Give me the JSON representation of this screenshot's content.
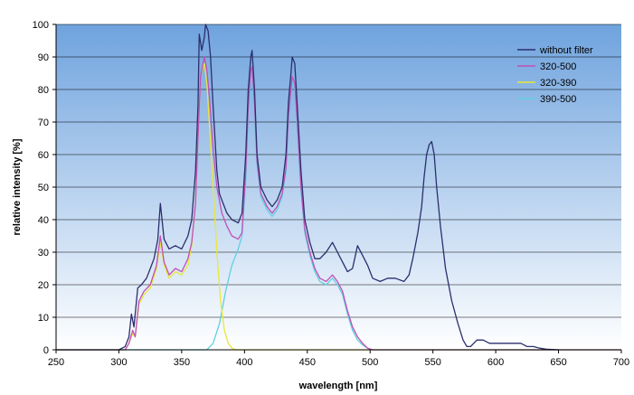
{
  "chart_data": {
    "type": "line",
    "xlabel": "wavelength [nm]",
    "ylabel": "relative intensity [%]",
    "xlim": [
      250,
      700
    ],
    "ylim": [
      0,
      100
    ],
    "x_ticks": [
      "250",
      "300",
      "350",
      "400",
      "450",
      "500",
      "550",
      "600",
      "650",
      "700"
    ],
    "y_ticks": [
      "0",
      "10",
      "20",
      "30",
      "40",
      "50",
      "60",
      "70",
      "80",
      "90",
      "100"
    ],
    "grid": "horizontal",
    "legend_position": "top-right",
    "series": [
      {
        "name": "without filter",
        "color": "#2b2f6e",
        "points": [
          [
            250,
            0
          ],
          [
            300,
            0
          ],
          [
            305,
            1
          ],
          [
            308,
            4
          ],
          [
            310,
            11
          ],
          [
            312,
            7
          ],
          [
            315,
            19
          ],
          [
            318,
            20
          ],
          [
            322,
            22
          ],
          [
            325,
            25
          ],
          [
            328,
            28
          ],
          [
            331,
            34
          ],
          [
            333,
            45
          ],
          [
            336,
            34
          ],
          [
            340,
            31
          ],
          [
            345,
            32
          ],
          [
            350,
            31
          ],
          [
            355,
            35
          ],
          [
            358,
            40
          ],
          [
            361,
            55
          ],
          [
            363,
            75
          ],
          [
            364,
            97
          ],
          [
            366,
            92
          ],
          [
            368,
            96
          ],
          [
            369,
            100
          ],
          [
            371,
            98
          ],
          [
            373,
            90
          ],
          [
            375,
            75
          ],
          [
            378,
            55
          ],
          [
            380,
            48
          ],
          [
            383,
            45
          ],
          [
            386,
            42
          ],
          [
            390,
            40
          ],
          [
            395,
            39
          ],
          [
            398,
            42
          ],
          [
            401,
            60
          ],
          [
            403,
            80
          ],
          [
            405,
            90
          ],
          [
            406,
            92
          ],
          [
            408,
            80
          ],
          [
            410,
            60
          ],
          [
            413,
            50
          ],
          [
            418,
            46
          ],
          [
            422,
            44
          ],
          [
            426,
            46
          ],
          [
            430,
            50
          ],
          [
            433,
            60
          ],
          [
            435,
            76
          ],
          [
            437,
            85
          ],
          [
            438,
            90
          ],
          [
            440,
            88
          ],
          [
            442,
            75
          ],
          [
            445,
            55
          ],
          [
            448,
            40
          ],
          [
            452,
            33
          ],
          [
            456,
            28
          ],
          [
            460,
            28
          ],
          [
            465,
            30
          ],
          [
            470,
            33
          ],
          [
            474,
            30
          ],
          [
            478,
            27
          ],
          [
            482,
            24
          ],
          [
            486,
            25
          ],
          [
            490,
            32
          ],
          [
            494,
            29
          ],
          [
            498,
            26
          ],
          [
            502,
            22
          ],
          [
            508,
            21
          ],
          [
            514,
            22
          ],
          [
            520,
            22
          ],
          [
            527,
            21
          ],
          [
            531,
            23
          ],
          [
            534,
            28
          ],
          [
            538,
            36
          ],
          [
            541,
            44
          ],
          [
            543,
            53
          ],
          [
            545,
            60
          ],
          [
            547,
            63
          ],
          [
            549,
            64
          ],
          [
            551,
            60
          ],
          [
            553,
            50
          ],
          [
            556,
            38
          ],
          [
            560,
            25
          ],
          [
            565,
            15
          ],
          [
            570,
            8
          ],
          [
            574,
            3
          ],
          [
            577,
            1
          ],
          [
            580,
            1
          ],
          [
            585,
            3
          ],
          [
            590,
            3
          ],
          [
            595,
            2
          ],
          [
            600,
            2
          ],
          [
            605,
            2
          ],
          [
            610,
            2
          ],
          [
            615,
            2
          ],
          [
            620,
            2
          ],
          [
            625,
            1
          ],
          [
            630,
            1
          ],
          [
            635,
            0.5
          ],
          [
            640,
            0.2
          ],
          [
            650,
            0
          ]
        ]
      },
      {
        "name": "320-500",
        "color": "#c050b8",
        "points": [
          [
            250,
            0
          ],
          [
            305,
            0
          ],
          [
            308,
            2
          ],
          [
            311,
            6
          ],
          [
            313,
            4
          ],
          [
            316,
            15
          ],
          [
            320,
            18
          ],
          [
            325,
            20
          ],
          [
            330,
            26
          ],
          [
            333,
            35
          ],
          [
            336,
            27
          ],
          [
            340,
            23
          ],
          [
            345,
            25
          ],
          [
            350,
            24
          ],
          [
            355,
            28
          ],
          [
            358,
            33
          ],
          [
            361,
            45
          ],
          [
            363,
            65
          ],
          [
            365,
            84
          ],
          [
            367,
            88
          ],
          [
            368,
            90
          ],
          [
            370,
            86
          ],
          [
            372,
            78
          ],
          [
            375,
            62
          ],
          [
            378,
            50
          ],
          [
            382,
            42
          ],
          [
            386,
            38
          ],
          [
            390,
            35
          ],
          [
            395,
            34
          ],
          [
            398,
            36
          ],
          [
            401,
            55
          ],
          [
            403,
            75
          ],
          [
            405,
            86
          ],
          [
            406,
            87
          ],
          [
            408,
            76
          ],
          [
            410,
            58
          ],
          [
            413,
            48
          ],
          [
            418,
            44
          ],
          [
            422,
            42
          ],
          [
            426,
            44
          ],
          [
            430,
            48
          ],
          [
            433,
            56
          ],
          [
            435,
            72
          ],
          [
            437,
            80
          ],
          [
            438,
            84
          ],
          [
            440,
            82
          ],
          [
            442,
            70
          ],
          [
            445,
            50
          ],
          [
            448,
            37
          ],
          [
            452,
            30
          ],
          [
            456,
            25
          ],
          [
            460,
            22
          ],
          [
            465,
            21
          ],
          [
            470,
            23
          ],
          [
            474,
            21
          ],
          [
            478,
            18
          ],
          [
            482,
            12
          ],
          [
            486,
            7
          ],
          [
            490,
            4
          ],
          [
            494,
            2
          ],
          [
            498,
            0.5
          ],
          [
            502,
            0
          ],
          [
            700,
            0
          ]
        ]
      },
      {
        "name": "320-390",
        "color": "#e8e838",
        "points": [
          [
            250,
            0
          ],
          [
            305,
            0
          ],
          [
            308,
            2
          ],
          [
            311,
            5
          ],
          [
            313,
            4
          ],
          [
            316,
            14
          ],
          [
            320,
            17
          ],
          [
            325,
            19
          ],
          [
            330,
            25
          ],
          [
            333,
            33
          ],
          [
            336,
            26
          ],
          [
            340,
            22
          ],
          [
            345,
            24
          ],
          [
            350,
            23
          ],
          [
            355,
            26
          ],
          [
            358,
            32
          ],
          [
            361,
            45
          ],
          [
            363,
            65
          ],
          [
            365,
            84
          ],
          [
            367,
            87
          ],
          [
            368,
            88
          ],
          [
            370,
            82
          ],
          [
            372,
            70
          ],
          [
            375,
            50
          ],
          [
            378,
            30
          ],
          [
            381,
            15
          ],
          [
            384,
            6
          ],
          [
            387,
            2
          ],
          [
            390,
            0.5
          ],
          [
            393,
            0
          ],
          [
            700,
            0
          ]
        ]
      },
      {
        "name": "390-500",
        "color": "#60d0e0",
        "points": [
          [
            250,
            0
          ],
          [
            370,
            0
          ],
          [
            375,
            2
          ],
          [
            380,
            8
          ],
          [
            385,
            18
          ],
          [
            390,
            26
          ],
          [
            395,
            31
          ],
          [
            398,
            35
          ],
          [
            401,
            52
          ],
          [
            403,
            73
          ],
          [
            405,
            84
          ],
          [
            406,
            86
          ],
          [
            408,
            74
          ],
          [
            410,
            57
          ],
          [
            413,
            47
          ],
          [
            418,
            43
          ],
          [
            422,
            41
          ],
          [
            426,
            43
          ],
          [
            430,
            47
          ],
          [
            433,
            55
          ],
          [
            435,
            70
          ],
          [
            437,
            79
          ],
          [
            438,
            82
          ],
          [
            440,
            80
          ],
          [
            442,
            68
          ],
          [
            445,
            49
          ],
          [
            448,
            36
          ],
          [
            452,
            29
          ],
          [
            456,
            24
          ],
          [
            460,
            21
          ],
          [
            465,
            20
          ],
          [
            470,
            22
          ],
          [
            474,
            20
          ],
          [
            478,
            17
          ],
          [
            482,
            11
          ],
          [
            486,
            6
          ],
          [
            490,
            3
          ],
          [
            494,
            1.5
          ],
          [
            498,
            0.5
          ],
          [
            502,
            0
          ],
          [
            700,
            0
          ]
        ]
      }
    ]
  }
}
